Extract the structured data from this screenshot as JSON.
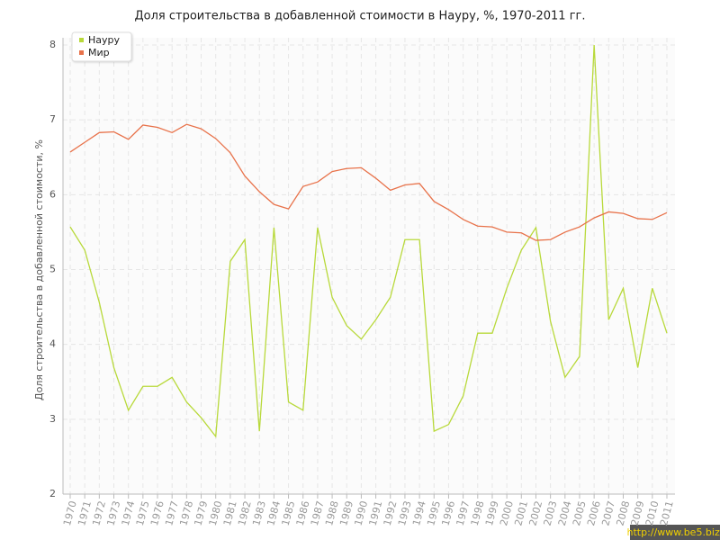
{
  "chart_data": {
    "type": "line",
    "title": "Доля строительства в добавленной стоимости в Науру, %, 1970-2011 гг.",
    "y_label": "Доля строительства в добавленной стоимости, %",
    "watermark": "http://www.be5.biz/",
    "categories": [
      "1970",
      "1971",
      "1972",
      "1973",
      "1974",
      "1975",
      "1976",
      "1977",
      "1978",
      "1979",
      "1980",
      "1981",
      "1982",
      "1983",
      "1984",
      "1985",
      "1986",
      "1987",
      "1988",
      "1989",
      "1990",
      "1991",
      "1992",
      "1993",
      "1994",
      "1995",
      "1996",
      "1997",
      "1998",
      "1999",
      "2000",
      "2001",
      "2002",
      "2003",
      "2004",
      "2005",
      "2006",
      "2007",
      "2008",
      "2009",
      "2010",
      "2011"
    ],
    "series": [
      {
        "name": "Науру",
        "color": "#b8d93a",
        "values": [
          5.57,
          5.26,
          4.56,
          3.69,
          3.12,
          3.44,
          3.44,
          3.56,
          3.23,
          3.02,
          2.77,
          5.11,
          5.4,
          2.84,
          5.56,
          3.23,
          3.12,
          5.56,
          4.63,
          4.25,
          4.07,
          4.33,
          4.63,
          5.4,
          5.4,
          2.84,
          2.93,
          3.31,
          4.15,
          4.15,
          4.75,
          5.26,
          5.56,
          4.31,
          3.56,
          3.84,
          8.0,
          4.33,
          4.75,
          3.69,
          4.75,
          4.15
        ]
      },
      {
        "name": "Мир",
        "color": "#e8724a",
        "values": [
          6.57,
          6.7,
          6.83,
          6.84,
          6.74,
          6.93,
          6.9,
          6.83,
          6.94,
          6.88,
          6.75,
          6.56,
          6.25,
          6.04,
          5.87,
          5.81,
          6.11,
          6.17,
          6.31,
          6.35,
          6.36,
          6.22,
          6.06,
          6.13,
          6.15,
          5.91,
          5.8,
          5.67,
          5.58,
          5.57,
          5.5,
          5.49,
          5.39,
          5.4,
          5.5,
          5.57,
          5.69,
          5.77,
          5.75,
          5.68,
          5.67,
          5.76
        ]
      }
    ],
    "ylim": [
      2,
      8
    ],
    "yticks": [
      2,
      3,
      4,
      5,
      6,
      7,
      8
    ],
    "grid": true,
    "legend": "top-left"
  }
}
